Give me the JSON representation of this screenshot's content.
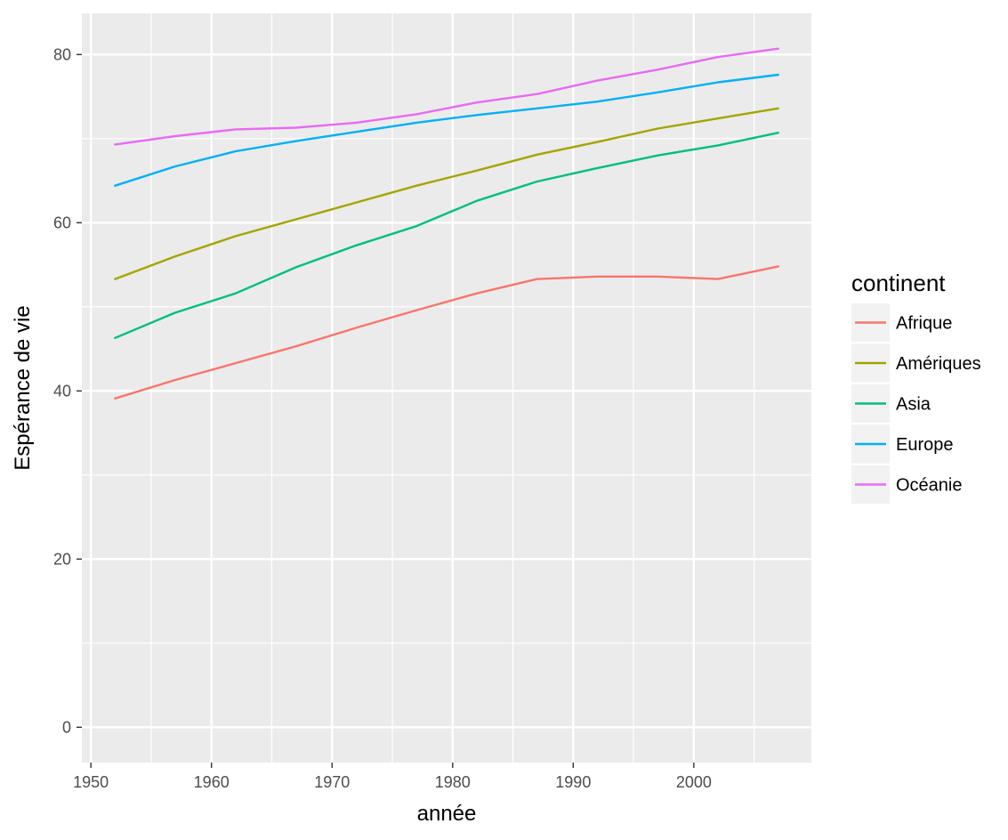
{
  "chart_data": {
    "type": "line",
    "title": "",
    "xlabel": "année",
    "ylabel": "Espérance de vie",
    "xlim": [
      1949.25,
      2009.75
    ],
    "ylim": [
      -4.2,
      84.9
    ],
    "x_ticks": [
      1950,
      1960,
      1970,
      1980,
      1990,
      2000
    ],
    "y_ticks": [
      0,
      20,
      40,
      60,
      80
    ],
    "grid": true,
    "legend": {
      "title": "continent",
      "position": "right"
    },
    "x": [
      1952,
      1957,
      1962,
      1967,
      1972,
      1977,
      1982,
      1987,
      1992,
      1997,
      2002,
      2007
    ],
    "series": [
      {
        "name": "Afrique",
        "color": "#F8766D",
        "values": [
          39.1,
          41.3,
          43.3,
          45.3,
          47.5,
          49.6,
          51.6,
          53.3,
          53.6,
          53.6,
          53.3,
          54.8
        ]
      },
      {
        "name": "Amériques",
        "color": "#A3A500",
        "values": [
          53.3,
          56.0,
          58.4,
          60.4,
          62.4,
          64.4,
          66.2,
          68.1,
          69.6,
          71.2,
          72.4,
          73.6
        ]
      },
      {
        "name": "Asia",
        "color": "#00BF7D",
        "values": [
          46.3,
          49.3,
          51.6,
          54.7,
          57.3,
          59.6,
          62.6,
          64.9,
          66.5,
          68.0,
          69.2,
          70.7
        ]
      },
      {
        "name": "Europe",
        "color": "#00B0F6",
        "values": [
          64.4,
          66.7,
          68.5,
          69.7,
          70.8,
          71.9,
          72.8,
          73.6,
          74.4,
          75.5,
          76.7,
          77.6
        ]
      },
      {
        "name": "Océanie",
        "color": "#E76BF3",
        "values": [
          69.3,
          70.3,
          71.1,
          71.3,
          71.9,
          72.9,
          74.3,
          75.3,
          76.9,
          78.2,
          79.7,
          80.7
        ]
      }
    ]
  }
}
